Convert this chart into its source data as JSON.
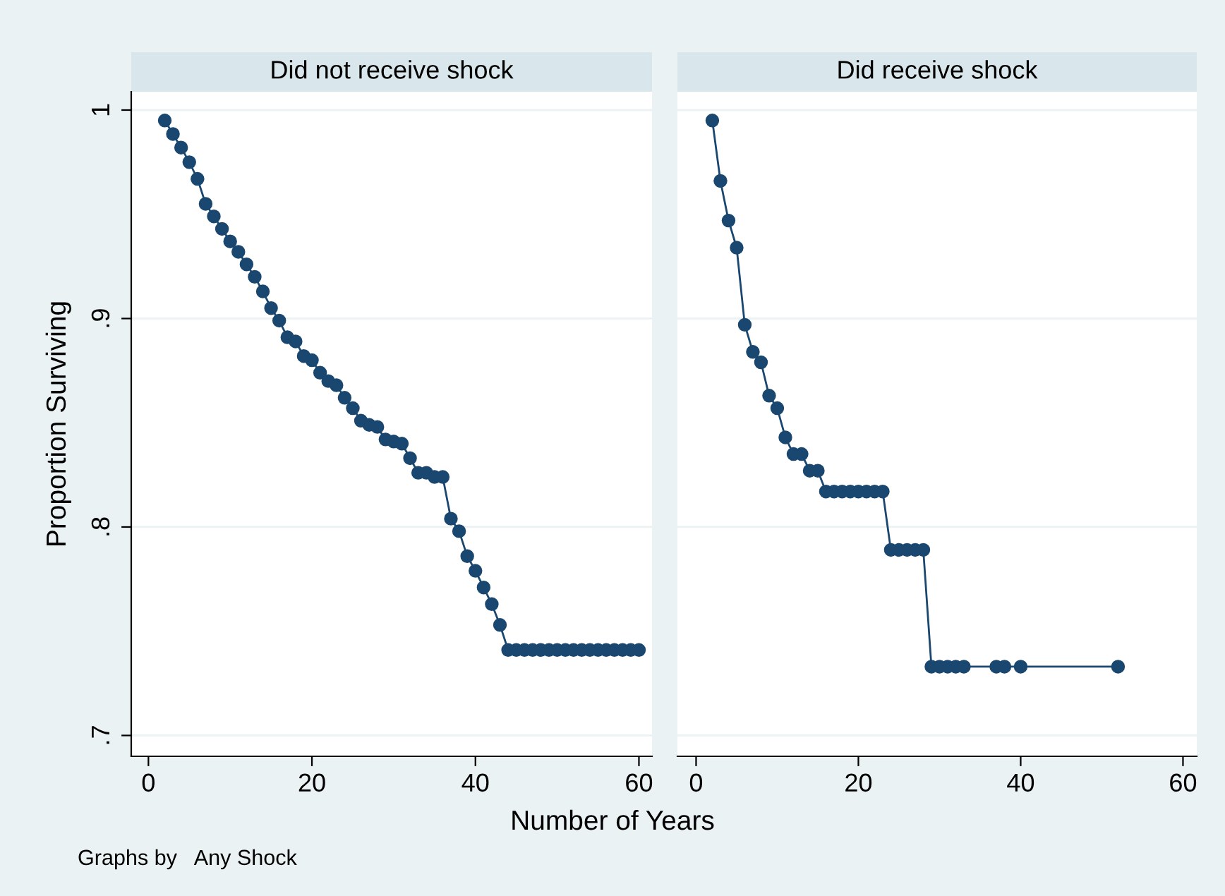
{
  "chart_data": [
    {
      "type": "line",
      "title": "Did not receive shock",
      "ylabel": "Proportion Surviving",
      "xlabel": "Number of Years",
      "annotations": [
        "Graphs by   Any Shock"
      ],
      "marker": "circle",
      "grid": "y",
      "tick_labels": true,
      "xlim": [
        -2.1,
        61.6
      ],
      "xticks": [
        0,
        20,
        40,
        60
      ],
      "ylim": [
        0.69,
        1.0088
      ],
      "yticks": [
        {
          "value": 0.7,
          "label": ".7"
        },
        {
          "value": 0.8,
          "label": ".8"
        },
        {
          "value": 0.9,
          "label": ".9"
        },
        1
      ],
      "series": [
        {
          "color": "#1a476f",
          "x": [
            2,
            3,
            4,
            5,
            6,
            7,
            8,
            9,
            10,
            11,
            12,
            13,
            14,
            15,
            16,
            17,
            18,
            19,
            20,
            21,
            22,
            23,
            24,
            25,
            26,
            27,
            28,
            29,
            30,
            31,
            32,
            33,
            34,
            35,
            36,
            37,
            38,
            39,
            40,
            41,
            42,
            43,
            44,
            45,
            46,
            47,
            48,
            49,
            50,
            51,
            52,
            53,
            54,
            55,
            56,
            57,
            58,
            59,
            60
          ],
          "values": [
            0.995,
            0.9885,
            0.982,
            0.975,
            0.967,
            0.955,
            0.949,
            0.943,
            0.937,
            0.932,
            0.926,
            0.92,
            0.913,
            0.905,
            0.899,
            0.891,
            0.889,
            0.882,
            0.88,
            0.874,
            0.87,
            0.868,
            0.862,
            0.857,
            0.851,
            0.849,
            0.848,
            0.842,
            0.841,
            0.84,
            0.833,
            0.826,
            0.826,
            0.824,
            0.824,
            0.804,
            0.798,
            0.786,
            0.779,
            0.771,
            0.763,
            0.753,
            0.741,
            0.741,
            0.741,
            0.741,
            0.741,
            0.741,
            0.741,
            0.741,
            0.741,
            0.741,
            0.741,
            0.741,
            0.741,
            0.741,
            0.741,
            0.741,
            0.741
          ]
        }
      ]
    },
    {
      "type": "line",
      "title": "Did receive shock",
      "marker": "circle",
      "grid": "y",
      "tick_labels": "x",
      "xlim": [
        -2.3,
        61.7
      ],
      "xticks": [
        0,
        20,
        40,
        60
      ],
      "ylim": [
        0.69,
        1.0088
      ],
      "yticks": [
        {
          "value": 0.7,
          "label": null
        },
        {
          "value": 0.8,
          "label": null
        },
        {
          "value": 0.9,
          "label": null
        },
        {
          "value": 1,
          "label": null
        }
      ],
      "series": [
        {
          "color": "#1a476f",
          "x": [
            2,
            3,
            4,
            5,
            6,
            7,
            8,
            9,
            10,
            11,
            12,
            13,
            14,
            15,
            16,
            17,
            18,
            19,
            20,
            21,
            22,
            23,
            24,
            25,
            26,
            27,
            28,
            29,
            30,
            31,
            32,
            33,
            37,
            38,
            40,
            52
          ],
          "values": [
            0.995,
            0.966,
            0.947,
            0.934,
            0.897,
            0.884,
            0.879,
            0.863,
            0.857,
            0.843,
            0.835,
            0.835,
            0.827,
            0.827,
            0.817,
            0.817,
            0.817,
            0.817,
            0.817,
            0.817,
            0.817,
            0.817,
            0.789,
            0.789,
            0.789,
            0.789,
            0.789,
            0.733,
            0.733,
            0.733,
            0.733,
            0.733,
            0.733,
            0.733,
            0.733,
            0.733
          ]
        }
      ]
    }
  ]
}
